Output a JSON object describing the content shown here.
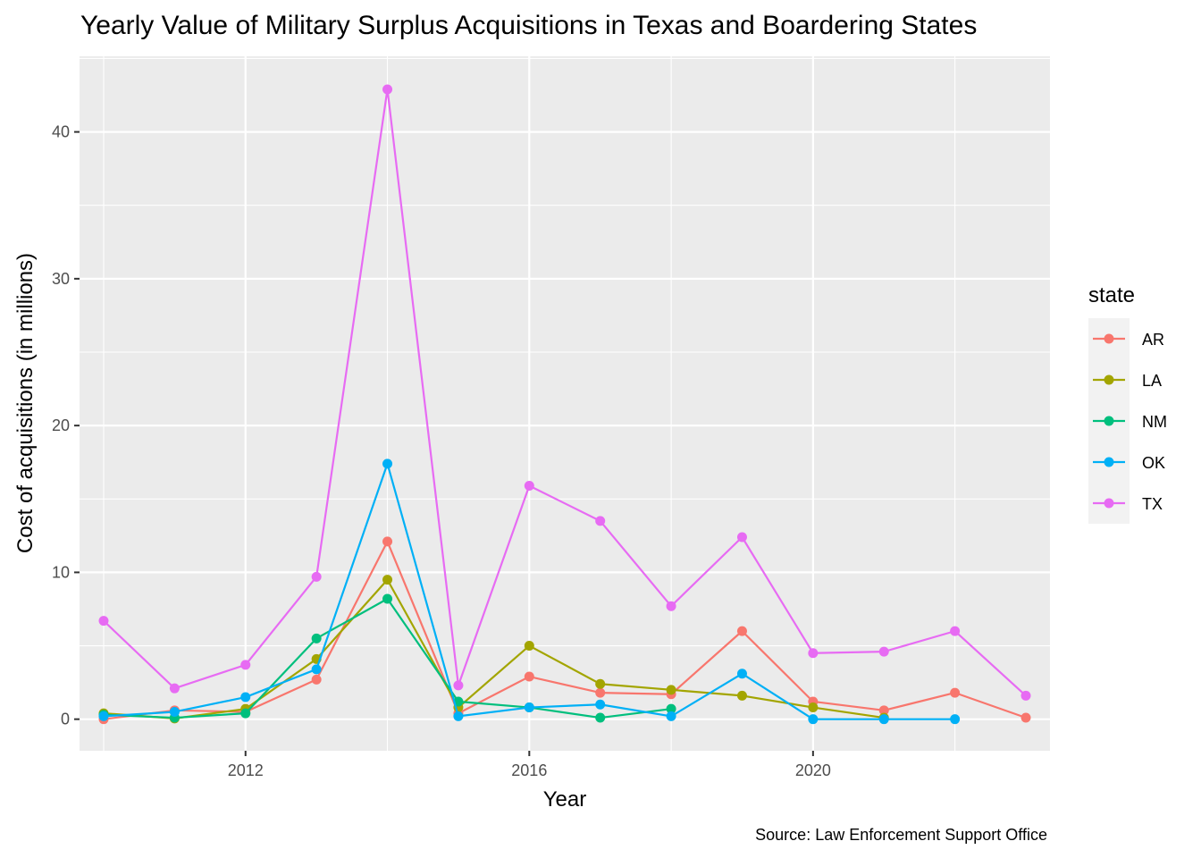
{
  "chart_data": {
    "type": "line",
    "title": "Yearly Value of Military Surplus Acquisitions in Texas and Boardering States",
    "xlabel": "Year",
    "ylabel": "Cost of acquisitions (in millions)",
    "caption": "Source: Law Enforcement Support Office",
    "legend_title": "state",
    "legend_position": "right",
    "grid": true,
    "xlim": [
      2009.66,
      2023.34
    ],
    "ylim": [
      -2.15,
      45.15
    ],
    "x_ticks": [
      2012,
      2016,
      2020
    ],
    "x_tick_labels": [
      "2012",
      "2016",
      "2020"
    ],
    "y_ticks": [
      0,
      10,
      20,
      30,
      40
    ],
    "y_tick_labels": [
      "0",
      "10",
      "20",
      "30",
      "40"
    ],
    "series": [
      {
        "name": "AR",
        "color": "#F8766D",
        "points": [
          [
            2010,
            0.0
          ],
          [
            2011,
            0.6
          ],
          [
            2012,
            0.5
          ],
          [
            2013,
            2.7
          ],
          [
            2014,
            12.1
          ],
          [
            2015,
            0.4
          ],
          [
            2016,
            2.9
          ],
          [
            2017,
            1.8
          ],
          [
            2018,
            1.7
          ],
          [
            2019,
            6.0
          ],
          [
            2020,
            1.2
          ],
          [
            2021,
            0.6
          ],
          [
            2022,
            1.8
          ],
          [
            2023,
            0.1
          ]
        ]
      },
      {
        "name": "LA",
        "color": "#A3A500",
        "points": [
          [
            2010,
            0.4
          ],
          [
            2011,
            0.05
          ],
          [
            2012,
            0.7
          ],
          [
            2013,
            4.1
          ],
          [
            2014,
            9.5
          ],
          [
            2015,
            0.8
          ],
          [
            2016,
            5.0
          ],
          [
            2017,
            2.4
          ],
          [
            2018,
            2.0
          ],
          [
            2019,
            1.6
          ],
          [
            2020,
            0.8
          ],
          [
            2021,
            0.1
          ]
        ]
      },
      {
        "name": "NM",
        "color": "#00BF7D",
        "points": [
          [
            2010,
            0.3
          ],
          [
            2011,
            0.1
          ],
          [
            2012,
            0.4
          ],
          [
            2013,
            5.5
          ],
          [
            2014,
            8.2
          ],
          [
            2015,
            1.2
          ],
          [
            2016,
            0.8
          ],
          [
            2017,
            0.1
          ],
          [
            2018,
            0.7
          ]
        ]
      },
      {
        "name": "OK",
        "color": "#00B0F6",
        "points": [
          [
            2010,
            0.2
          ],
          [
            2011,
            0.5
          ],
          [
            2012,
            1.5
          ],
          [
            2013,
            3.4
          ],
          [
            2014,
            17.4
          ],
          [
            2015,
            0.2
          ],
          [
            2016,
            0.8
          ],
          [
            2017,
            1.0
          ],
          [
            2018,
            0.2
          ],
          [
            2019,
            3.1
          ],
          [
            2020,
            0.0
          ],
          [
            2021,
            0.0
          ],
          [
            2022,
            0.0
          ]
        ]
      },
      {
        "name": "TX",
        "color": "#E76BF3",
        "points": [
          [
            2010,
            6.7
          ],
          [
            2011,
            2.1
          ],
          [
            2012,
            3.7
          ],
          [
            2013,
            9.7
          ],
          [
            2014,
            42.9
          ],
          [
            2015,
            2.3
          ],
          [
            2016,
            15.9
          ],
          [
            2017,
            13.5
          ],
          [
            2018,
            7.7
          ],
          [
            2019,
            12.4
          ],
          [
            2020,
            4.5
          ],
          [
            2021,
            4.6
          ],
          [
            2022,
            6.0
          ],
          [
            2023,
            1.6
          ]
        ]
      }
    ]
  }
}
